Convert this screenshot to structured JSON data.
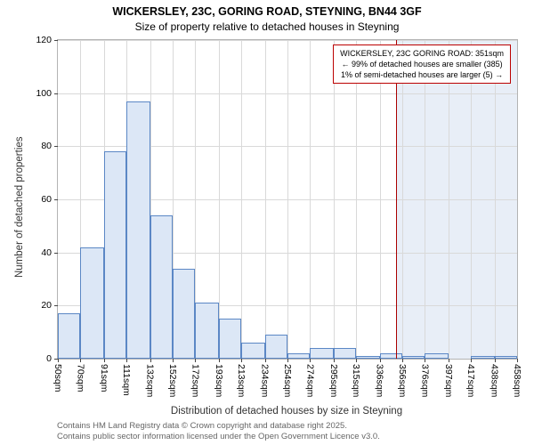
{
  "title": "WICKERSLEY, 23C, GORING ROAD, STEYNING, BN44 3GF",
  "subtitle": "Size of property relative to detached houses in Steyning",
  "colors": {
    "bar_fill": "#dce7f6",
    "bar_border": "#5b87c5",
    "marker": "#aa0000",
    "shade": "#e8eef7",
    "grid": "#d9d9d9"
  },
  "chart_data": {
    "type": "bar",
    "title": "WICKERSLEY, 23C, GORING ROAD, STEYNING, BN44 3GF",
    "subtitle": "Size of property relative to detached houses in Steyning",
    "xlabel": "Distribution of detached houses by size in Steyning",
    "ylabel": "Number of detached properties",
    "ylim": [
      0,
      120
    ],
    "yticks": [
      0,
      20,
      40,
      60,
      80,
      100,
      120
    ],
    "grid": true,
    "bin_edges": [
      50,
      70,
      91,
      111,
      132,
      152,
      172,
      193,
      213,
      234,
      254,
      274,
      295,
      315,
      336,
      356,
      376,
      397,
      417,
      438,
      458
    ],
    "categories": [
      "50sqm",
      "70sqm",
      "91sqm",
      "111sqm",
      "132sqm",
      "152sqm",
      "172sqm",
      "193sqm",
      "213sqm",
      "234sqm",
      "254sqm",
      "274sqm",
      "295sqm",
      "315sqm",
      "336sqm",
      "356sqm",
      "376sqm",
      "397sqm",
      "417sqm",
      "438sqm",
      "458sqm"
    ],
    "values": [
      17,
      42,
      78,
      97,
      54,
      34,
      21,
      15,
      6,
      9,
      2,
      4,
      4,
      1,
      2,
      1,
      2,
      0,
      1,
      1
    ],
    "marker": {
      "value": 351,
      "label": "WICKERSLEY, 23C GORING ROAD: 351sqm"
    },
    "annotation_lines": [
      "WICKERSLEY, 23C GORING ROAD: 351sqm",
      "← 99% of detached houses are smaller (385)",
      "1% of semi-detached houses are larger (5) →"
    ]
  },
  "footer": {
    "line1": "Contains HM Land Registry data © Crown copyright and database right 2025.",
    "line2": "Contains public sector information licensed under the Open Government Licence v3.0."
  }
}
